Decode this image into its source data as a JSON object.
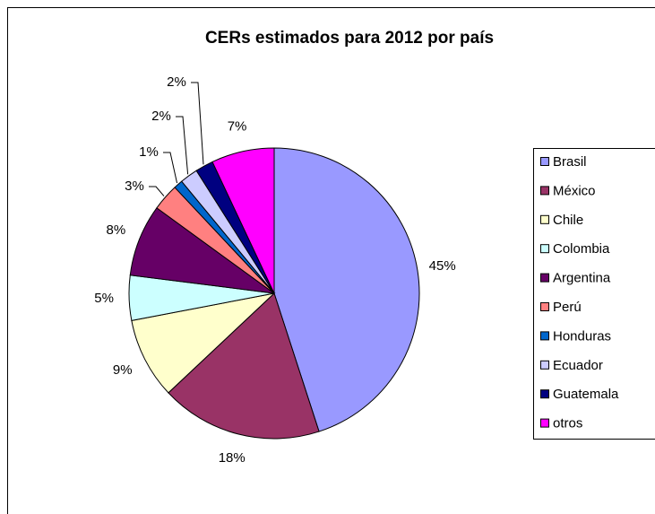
{
  "chart_data": {
    "type": "pie",
    "title": "CERs estimados para 2012 por país",
    "categories": [
      "Brasil",
      "México",
      "Chile",
      "Colombia",
      "Argentina",
      "Perú",
      "Honduras",
      "Ecuador",
      "Guatemala",
      "otros"
    ],
    "values": [
      45,
      18,
      9,
      5,
      8,
      3,
      1,
      2,
      2,
      7
    ],
    "value_labels": [
      "45%",
      "18%",
      "9%",
      "5%",
      "8%",
      "3%",
      "1%",
      "2%",
      "2%",
      "7%"
    ],
    "colors": [
      "#9999ff",
      "#993366",
      "#ffffcc",
      "#ccffff",
      "#660066",
      "#ff8080",
      "#0066cc",
      "#ccccff",
      "#000080",
      "#ff00ff"
    ]
  }
}
